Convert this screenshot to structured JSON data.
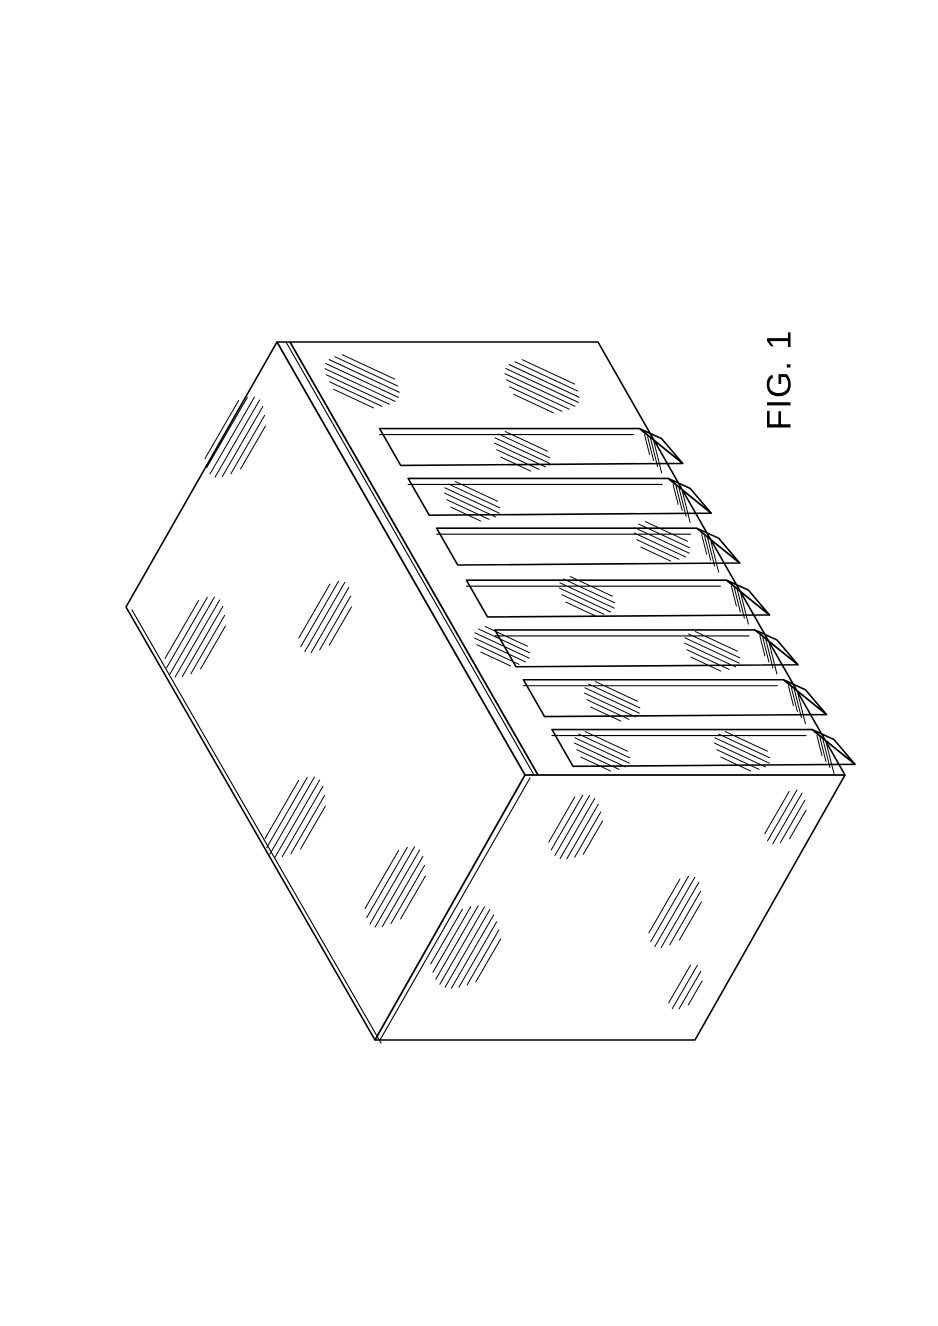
{
  "figure": {
    "caption": "FIG. 1",
    "subject": "pleated-filter-block",
    "pleat_count": 7
  }
}
